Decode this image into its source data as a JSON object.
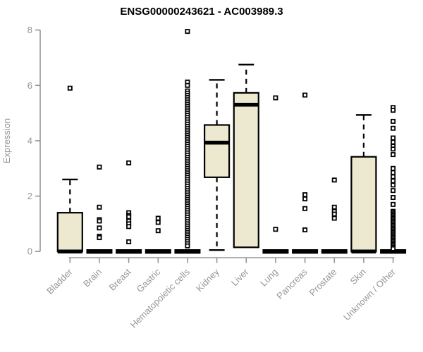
{
  "title": "ENSG00000243621 - AC003989.3",
  "y_axis": {
    "label": "Expression"
  },
  "colors": {
    "box_fill": "#EDE8D0",
    "box_border": "#000000",
    "axis": "#969696",
    "title_text": "#000000",
    "background": "#FFFFFF"
  },
  "chart_data": {
    "type": "boxplot",
    "title": "ENSG00000243621 - AC003989.3",
    "xlabel": "",
    "ylabel": "Expression",
    "ylim": [
      0,
      8
    ],
    "yticks": [
      0,
      2,
      4,
      6,
      8
    ],
    "grid": false,
    "legend": "none",
    "categories": [
      "Bladder",
      "Brain",
      "Breast",
      "Gastric",
      "Hematopoietic cells",
      "Kidney",
      "Liver",
      "Lung",
      "Pancreas",
      "Prostate",
      "Skin",
      "Unknown / Other"
    ],
    "series": [
      {
        "category": "Bladder",
        "whisker_low": 0,
        "q1": 0,
        "median": 0,
        "q3": 1.4,
        "whisker_high": 2.6,
        "outliers": [
          5.9
        ]
      },
      {
        "category": "Brain",
        "whisker_low": 0,
        "q1": 0,
        "median": 0,
        "q3": 0,
        "whisker_high": 0,
        "outliers": [
          3.05,
          1.6,
          1.15,
          1.1,
          0.85,
          0.55,
          0.5
        ]
      },
      {
        "category": "Breast",
        "whisker_low": 0,
        "q1": 0,
        "median": 0,
        "q3": 0,
        "whisker_high": 0,
        "outliers": [
          3.2,
          1.4,
          1.3,
          1.25,
          1.1,
          1.0,
          0.9,
          0.35
        ]
      },
      {
        "category": "Gastric",
        "whisker_low": 0,
        "q1": 0,
        "median": 0,
        "q3": 0,
        "whisker_high": 0,
        "outliers": [
          1.2,
          1.05,
          0.75
        ]
      },
      {
        "category": "Hematopoietic cells",
        "whisker_low": 0,
        "q1": 0,
        "median": 0,
        "q3": 0,
        "whisker_high": 0,
        "outliers": [
          7.95,
          6.12,
          6.0,
          5.8,
          5.72,
          5.64,
          5.56,
          5.48,
          5.4,
          5.32,
          5.24,
          5.16,
          5.08,
          5.0,
          4.92,
          4.84,
          4.76,
          4.68,
          4.6,
          4.52,
          4.44,
          4.36,
          4.28,
          4.2,
          4.12,
          4.04,
          3.96,
          3.88,
          3.8,
          3.72,
          3.64,
          3.56,
          3.48,
          3.4,
          3.32,
          3.24,
          3.16,
          3.08,
          3.0,
          2.92,
          2.84,
          2.76,
          2.68,
          2.6,
          2.52,
          2.44,
          2.36,
          2.28,
          2.2,
          2.12,
          2.04,
          1.96,
          1.88,
          1.8,
          1.72,
          1.64,
          1.56,
          1.48,
          1.4,
          1.32,
          1.24,
          1.16,
          1.08,
          1.0,
          0.92,
          0.84,
          0.76,
          0.68,
          0.6,
          0.52,
          0.44,
          0.36,
          0.28,
          0.2
        ]
      },
      {
        "category": "Kidney",
        "whisker_low": 0.05,
        "q1": 2.68,
        "median": 3.93,
        "q3": 4.57,
        "whisker_high": 6.2,
        "outliers": []
      },
      {
        "category": "Liver",
        "whisker_low": 0.15,
        "q1": 0.15,
        "median": 5.3,
        "q3": 5.73,
        "whisker_high": 6.75,
        "outliers": []
      },
      {
        "category": "Lung",
        "whisker_low": 0,
        "q1": 0,
        "median": 0,
        "q3": 0,
        "whisker_high": 0,
        "outliers": [
          5.55,
          0.8
        ]
      },
      {
        "category": "Pancreas",
        "whisker_low": 0,
        "q1": 0,
        "median": 0,
        "q3": 0,
        "whisker_high": 0,
        "outliers": [
          5.65,
          2.05,
          1.9,
          1.55,
          0.78
        ]
      },
      {
        "category": "Prostate",
        "whisker_low": 0,
        "q1": 0,
        "median": 0,
        "q3": 0,
        "whisker_high": 0,
        "outliers": [
          2.58,
          1.6,
          1.45,
          1.35,
          1.2
        ]
      },
      {
        "category": "Skin",
        "whisker_low": 0,
        "q1": 0,
        "median": 0,
        "q3": 3.42,
        "whisker_high": 4.93,
        "outliers": []
      },
      {
        "category": "Unknown / Other",
        "whisker_low": 0,
        "q1": 0,
        "median": 0,
        "q3": 0,
        "whisker_high": 0,
        "outliers": [
          5.2,
          5.1,
          4.7,
          4.45,
          4.1,
          3.95,
          3.8,
          3.7,
          3.5,
          3.0,
          2.85,
          2.7,
          2.55,
          2.4,
          2.2,
          1.95,
          1.7,
          1.45,
          1.4,
          1.35,
          1.3,
          1.25,
          1.2,
          1.15,
          1.1,
          1.05,
          1.0,
          0.95,
          0.9,
          0.85,
          0.8,
          0.75,
          0.7,
          0.65,
          0.6,
          0.55,
          0.5,
          0.45,
          0.4,
          0.35,
          0.3,
          0.25,
          0.2,
          0.15,
          0.1
        ]
      }
    ]
  }
}
